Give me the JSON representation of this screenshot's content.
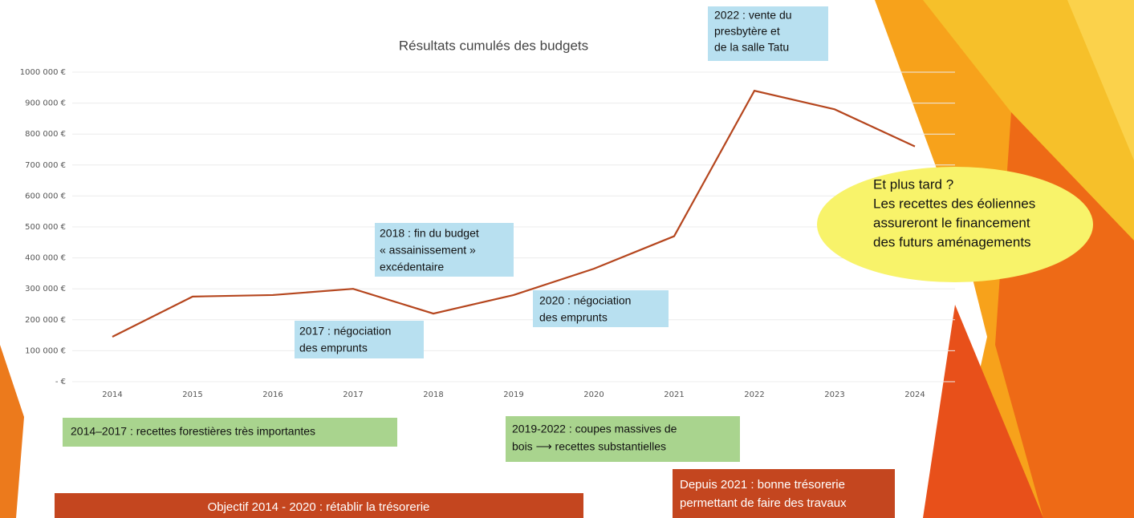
{
  "chart_data": {
    "type": "line",
    "title": "Résultats cumulés des budgets",
    "categories": [
      "2014",
      "2015",
      "2016",
      "2017",
      "2018",
      "2019",
      "2020",
      "2021",
      "2022",
      "2023",
      "2024"
    ],
    "values": [
      145000,
      275000,
      280000,
      300000,
      220000,
      280000,
      365000,
      470000,
      940000,
      880000,
      760000
    ],
    "color": "#b5461e",
    "ylim": [
      0,
      1000000
    ],
    "yticks": [
      {
        "value": 0,
        "label": "- €"
      },
      {
        "value": 100000,
        "label": "100 000 €"
      },
      {
        "value": 200000,
        "label": "200 000 €"
      },
      {
        "value": 300000,
        "label": "300 000 €"
      },
      {
        "value": 400000,
        "label": "400 000 €"
      },
      {
        "value": 500000,
        "label": "500 000 €"
      },
      {
        "value": 600000,
        "label": "600 000 €"
      },
      {
        "value": 700000,
        "label": "700 000 €"
      },
      {
        "value": 800000,
        "label": "800 000 €"
      },
      {
        "value": 900000,
        "label": "900 000 €"
      },
      {
        "value": 1000000,
        "label": "1000 000 €"
      }
    ],
    "grid": true,
    "annotations": [
      {
        "lines": [
          "2022 : vente du",
          "presbytère et",
          "de la salle Tatu"
        ]
      },
      {
        "lines": [
          "2018 : fin du budget",
          "« assainissement »",
          "excédentaire"
        ]
      },
      {
        "lines": [
          "2017 : négociation",
          "des emprunts"
        ]
      },
      {
        "lines": [
          "2020 : négociation",
          "des emprunts"
        ]
      },
      {
        "lines": [
          "Et plus tard ?",
          "Les recettes des éoliennes",
          "assureront le financement",
          "des futurs aménagements"
        ]
      },
      {
        "lines": [
          "2014–2017 : recettes forestières très importantes"
        ]
      },
      {
        "lines": [
          "2019-2022 : coupes massives de",
          "bois ⟶ recettes substantielles"
        ]
      },
      {
        "lines": [
          "Objectif 2014 - 2020 : rétablir la trésorerie"
        ]
      },
      {
        "lines": [
          "Depuis 2021 : bonne trésorerie",
          "permettant de faire des travaux"
        ]
      }
    ]
  }
}
